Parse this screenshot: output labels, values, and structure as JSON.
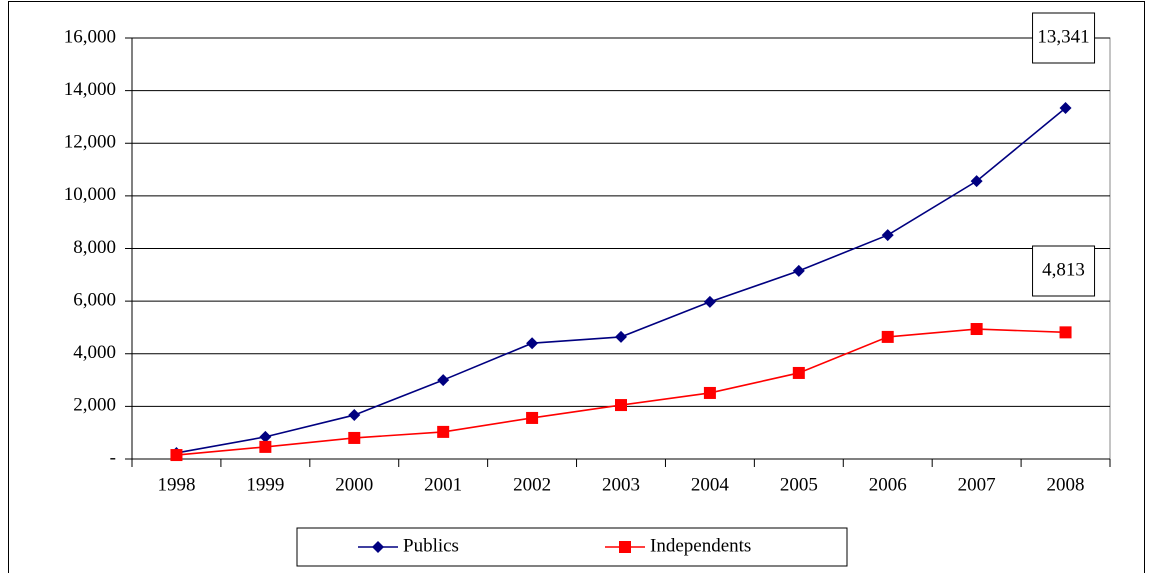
{
  "chart_data": {
    "type": "line",
    "categories": [
      "1998",
      "1999",
      "2000",
      "2001",
      "2002",
      "2003",
      "2004",
      "2005",
      "2006",
      "2007",
      "2008"
    ],
    "series": [
      {
        "name": "Publics",
        "color": "#000080",
        "marker": "diamond",
        "values": [
          230,
          840,
          1670,
          3000,
          4400,
          4640,
          5970,
          7150,
          8510,
          10560,
          13341
        ],
        "value_labels": [
          null,
          null,
          null,
          null,
          null,
          null,
          null,
          null,
          null,
          null,
          "13,341"
        ]
      },
      {
        "name": "Independents",
        "color": "#ff0000",
        "marker": "square",
        "values": [
          150,
          460,
          800,
          1030,
          1560,
          2050,
          2510,
          3270,
          4640,
          4940,
          4813
        ],
        "value_labels": [
          null,
          null,
          null,
          null,
          null,
          null,
          null,
          null,
          null,
          null,
          "4,813"
        ]
      }
    ],
    "ylim": [
      0,
      16000
    ],
    "yticks": [
      {
        "value": 0,
        "label": "-"
      },
      {
        "value": 2000,
        "label": "2,000"
      },
      {
        "value": 4000,
        "label": "4,000"
      },
      {
        "value": 6000,
        "label": "6,000"
      },
      {
        "value": 8000,
        "label": "8,000"
      },
      {
        "value": 10000,
        "label": "10,000"
      },
      {
        "value": 12000,
        "label": "12,000"
      },
      {
        "value": 14000,
        "label": "14,000"
      },
      {
        "value": 16000,
        "label": "16,000"
      }
    ],
    "grid": true,
    "legend": "bottom"
  }
}
